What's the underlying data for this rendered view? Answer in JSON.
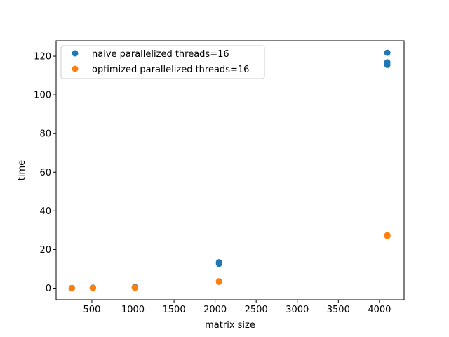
{
  "chart_data": {
    "type": "scatter",
    "title": "",
    "xlabel": "matrix size",
    "ylabel": "time",
    "xlim": [
      65,
      4300
    ],
    "ylim": [
      -6,
      128
    ],
    "xticks": [
      500,
      1000,
      1500,
      2000,
      2500,
      3000,
      3500,
      4000
    ],
    "yticks": [
      0,
      20,
      40,
      60,
      80,
      100,
      120
    ],
    "grid": false,
    "legend_position": "top-left",
    "series": [
      {
        "name": "naive parallelized threads=16",
        "color": "#1f77b4",
        "x": [
          256,
          256,
          256,
          512,
          512,
          512,
          1024,
          1024,
          1024,
          2048,
          2048,
          2048,
          4096,
          4096,
          4096
        ],
        "y": [
          0.02,
          0.03,
          0.04,
          0.15,
          0.17,
          0.2,
          0.4,
          0.5,
          0.55,
          12.6,
          13.1,
          13.4,
          115.5,
          116.8,
          121.8
        ]
      },
      {
        "name": "optimized parallelized threads=16",
        "color": "#ff7f0e",
        "x": [
          256,
          256,
          256,
          512,
          512,
          512,
          1024,
          1024,
          1024,
          2048,
          2048,
          2048,
          4096,
          4096,
          4096
        ],
        "y": [
          0.01,
          0.02,
          0.03,
          0.05,
          0.06,
          0.08,
          0.2,
          0.25,
          0.3,
          3.3,
          3.4,
          3.6,
          27.0,
          27.2,
          27.4
        ]
      }
    ]
  }
}
